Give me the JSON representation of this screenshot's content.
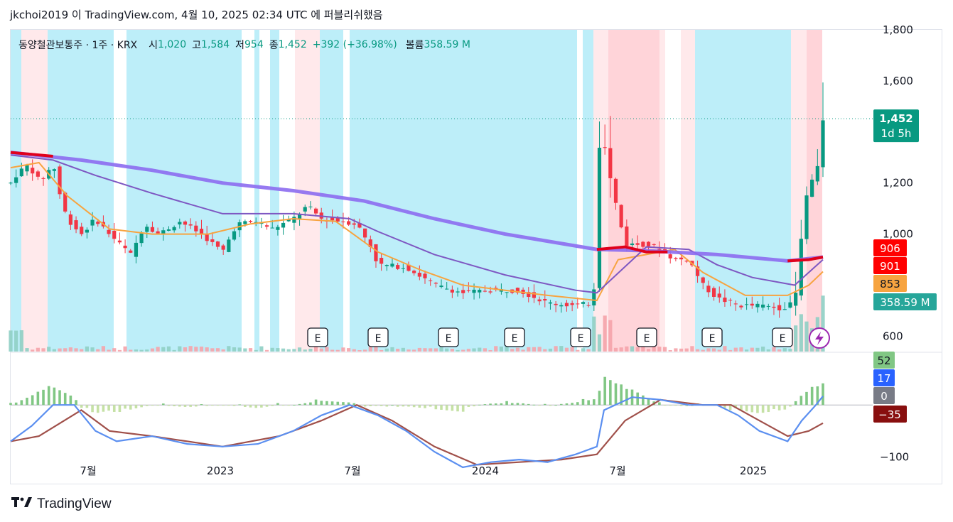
{
  "header": {
    "published_line": "jkchoi2019 이 TradingView.com, 4월 10, 2025 02:34 UTC 에 퍼블리쉬했음"
  },
  "legend": {
    "symbol": "동양철관보통주 · 1주 · KRX",
    "open_label": "시",
    "open_value": "1,020",
    "high_label": "고",
    "high_value": "1,584",
    "low_label": "저",
    "low_value": "954",
    "close_label": "종",
    "close_value": "1,452",
    "change": "+392 (+36.98%)",
    "volume_label": "볼륨",
    "volume_value": "358.59 M"
  },
  "footer": {
    "brand": "TradingView",
    "logo_icon": "tradingview-logo-icon"
  },
  "colors": {
    "up": "#089981",
    "down": "#f23645",
    "ma_purple": "#7e57c2",
    "ma_orange": "#f7a440",
    "bg_blue": "#b2ebf8",
    "bg_red": "#ffcdd2",
    "bg_lightred": "#ffe5e8",
    "macd_blue": "#5b8ff0",
    "macd_signal": "#a0504a"
  },
  "chart_data": {
    "type": "candlestick",
    "ylim": [
      540,
      1800
    ],
    "price_ticks": [
      "1,800",
      "1,600",
      "1,200",
      "1,000",
      "600"
    ],
    "x_ticks": [
      "7월",
      "2023",
      "7월",
      "2024",
      "7월",
      "2025"
    ],
    "current_price": {
      "value": "1,452",
      "countdown": "1d 5h"
    },
    "series_labels": [
      {
        "value": "906",
        "color": "#ff0000"
      },
      {
        "value": "901",
        "color": "#ff0000"
      },
      {
        "value": "853",
        "color": "#f7a440"
      },
      {
        "value": "358.59 M",
        "color": "#26a69a"
      }
    ],
    "earnings_markers": [
      "E",
      "E",
      "E",
      "E",
      "E",
      "E",
      "E",
      "E"
    ],
    "price_anchors": [
      [
        0,
        1200
      ],
      [
        10,
        1240
      ],
      [
        25,
        1270
      ],
      [
        40,
        1210
      ],
      [
        50,
        1230
      ],
      [
        60,
        1280
      ],
      [
        70,
        1150
      ],
      [
        80,
        1060
      ],
      [
        100,
        1000
      ],
      [
        120,
        1060
      ],
      [
        140,
        1000
      ],
      [
        170,
        920
      ],
      [
        190,
        1040
      ],
      [
        210,
        1000
      ],
      [
        240,
        1050
      ],
      [
        270,
        1000
      ],
      [
        300,
        930
      ],
      [
        320,
        1040
      ],
      [
        350,
        1050
      ],
      [
        370,
        1020
      ],
      [
        400,
        1060
      ],
      [
        420,
        1110
      ],
      [
        440,
        1060
      ],
      [
        470,
        1050
      ],
      [
        490,
        1040
      ],
      [
        510,
        950
      ],
      [
        520,
        880
      ],
      [
        560,
        870
      ],
      [
        600,
        800
      ],
      [
        640,
        770
      ],
      [
        680,
        780
      ],
      [
        720,
        780
      ],
      [
        760,
        730
      ],
      [
        800,
        720
      ],
      [
        825,
        730
      ],
      [
        835,
        1450
      ],
      [
        850,
        1200
      ],
      [
        870,
        960
      ],
      [
        900,
        960
      ],
      [
        920,
        940
      ],
      [
        940,
        900
      ],
      [
        960,
        900
      ],
      [
        980,
        800
      ],
      [
        1000,
        750
      ],
      [
        1030,
        720
      ],
      [
        1060,
        720
      ],
      [
        1090,
        710
      ],
      [
        1110,
        730
      ],
      [
        1120,
        1000
      ],
      [
        1130,
        1220
      ],
      [
        1140,
        1200
      ],
      [
        1150,
        1450
      ]
    ],
    "ma_slow": [
      [
        0,
        1320
      ],
      [
        100,
        1290
      ],
      [
        200,
        1250
      ],
      [
        300,
        1200
      ],
      [
        400,
        1170
      ],
      [
        500,
        1130
      ],
      [
        600,
        1060
      ],
      [
        700,
        1000
      ],
      [
        830,
        940
      ],
      [
        900,
        935
      ],
      [
        1000,
        920
      ],
      [
        1100,
        895
      ],
      [
        1150,
        910
      ]
    ],
    "ma_mid": [
      [
        0,
        1310
      ],
      [
        60,
        1290
      ],
      [
        120,
        1230
      ],
      [
        200,
        1160
      ],
      [
        300,
        1080
      ],
      [
        400,
        1080
      ],
      [
        480,
        1060
      ],
      [
        520,
        1010
      ],
      [
        600,
        920
      ],
      [
        700,
        840
      ],
      [
        800,
        780
      ],
      [
        830,
        770
      ],
      [
        900,
        950
      ],
      [
        960,
        940
      ],
      [
        1000,
        880
      ],
      [
        1050,
        830
      ],
      [
        1110,
        800
      ],
      [
        1150,
        900
      ]
    ],
    "ma_fast": [
      [
        0,
        1260
      ],
      [
        40,
        1280
      ],
      [
        80,
        1150
      ],
      [
        140,
        1020
      ],
      [
        200,
        1000
      ],
      [
        280,
        1000
      ],
      [
        340,
        1040
      ],
      [
        400,
        1060
      ],
      [
        460,
        1050
      ],
      [
        520,
        930
      ],
      [
        580,
        860
      ],
      [
        640,
        800
      ],
      [
        700,
        780
      ],
      [
        760,
        760
      ],
      [
        830,
        740
      ],
      [
        860,
        900
      ],
      [
        900,
        920
      ],
      [
        940,
        940
      ],
      [
        980,
        850
      ],
      [
        1040,
        760
      ],
      [
        1100,
        760
      ],
      [
        1130,
        800
      ],
      [
        1150,
        853
      ]
    ],
    "macd": {
      "ylim": [
        -150,
        100
      ],
      "zero_label": "0",
      "tick_label": "−100",
      "value_labels": [
        {
          "value": "52",
          "color": "#81c784"
        },
        {
          "value": "17",
          "color": "#2962ff"
        },
        {
          "value": "0",
          "color": "#787b86"
        },
        {
          "value": "−35",
          "color": "#880e0e"
        }
      ],
      "macd_line": [
        [
          0,
          -70
        ],
        [
          30,
          -40
        ],
        [
          60,
          0
        ],
        [
          90,
          0
        ],
        [
          120,
          -50
        ],
        [
          150,
          -70
        ],
        [
          200,
          -60
        ],
        [
          250,
          -75
        ],
        [
          300,
          -80
        ],
        [
          350,
          -75
        ],
        [
          400,
          -50
        ],
        [
          440,
          -20
        ],
        [
          480,
          0
        ],
        [
          520,
          -20
        ],
        [
          560,
          -50
        ],
        [
          600,
          -90
        ],
        [
          640,
          -120
        ],
        [
          680,
          -110
        ],
        [
          720,
          -105
        ],
        [
          760,
          -110
        ],
        [
          800,
          -95
        ],
        [
          830,
          -80
        ],
        [
          840,
          -10
        ],
        [
          880,
          15
        ],
        [
          920,
          10
        ],
        [
          960,
          0
        ],
        [
          1000,
          0
        ],
        [
          1030,
          -20
        ],
        [
          1060,
          -50
        ],
        [
          1100,
          -70
        ],
        [
          1120,
          -30
        ],
        [
          1140,
          0
        ],
        [
          1150,
          17
        ]
      ],
      "signal_line": [
        [
          0,
          -70
        ],
        [
          40,
          -60
        ],
        [
          100,
          -10
        ],
        [
          140,
          -50
        ],
        [
          200,
          -60
        ],
        [
          300,
          -80
        ],
        [
          380,
          -60
        ],
        [
          440,
          -30
        ],
        [
          490,
          0
        ],
        [
          540,
          -30
        ],
        [
          600,
          -80
        ],
        [
          660,
          -115
        ],
        [
          720,
          -110
        ],
        [
          780,
          -105
        ],
        [
          830,
          -95
        ],
        [
          870,
          -30
        ],
        [
          920,
          10
        ],
        [
          980,
          0
        ],
        [
          1020,
          0
        ],
        [
          1060,
          -30
        ],
        [
          1100,
          -60
        ],
        [
          1130,
          -50
        ],
        [
          1150,
          -35
        ]
      ]
    }
  }
}
